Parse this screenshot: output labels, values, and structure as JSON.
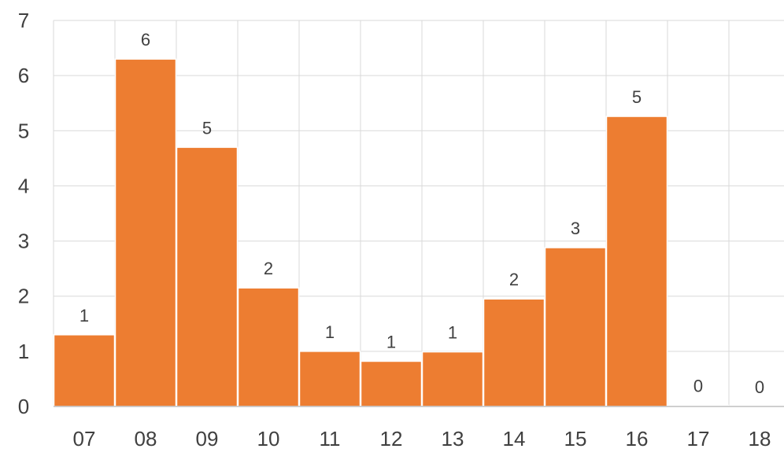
{
  "chart_data": {
    "type": "bar",
    "title": "",
    "xlabel": "",
    "ylabel": "",
    "categories": [
      "07",
      "08",
      "09",
      "10",
      "11",
      "12",
      "13",
      "14",
      "15",
      "16",
      "17",
      "18"
    ],
    "values": [
      1.3,
      6.3,
      4.7,
      2.15,
      1.0,
      0.82,
      0.99,
      1.95,
      2.88,
      5.26,
      0.02,
      0.0
    ],
    "data_labels": [
      "1",
      "6",
      "5",
      "2",
      "1",
      "1",
      "1",
      "2",
      "3",
      "5",
      "0",
      "0"
    ],
    "ylim": [
      0,
      7
    ],
    "yticks": [
      "0",
      "1",
      "2",
      "3",
      "4",
      "5",
      "6",
      "7"
    ],
    "grid": true,
    "legend": "none",
    "bar_color": "#ed7d31",
    "bar_edge_color": "#ffffff"
  }
}
